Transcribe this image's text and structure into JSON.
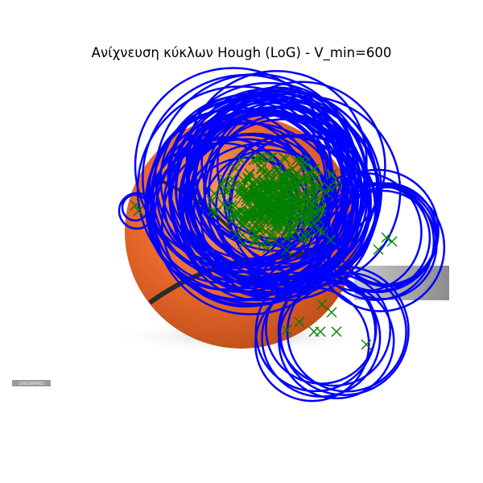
{
  "title": "Ανίχνευση κύκλων Hough (LoG) - V_min=600",
  "watermark": "1991934902",
  "colors": {
    "circles": "#0000ff",
    "centers": "#008000",
    "ball": "#e8672a",
    "seam": "#2b2b2b",
    "background": "#ffffff"
  },
  "image_subject": "basketball on white background"
}
